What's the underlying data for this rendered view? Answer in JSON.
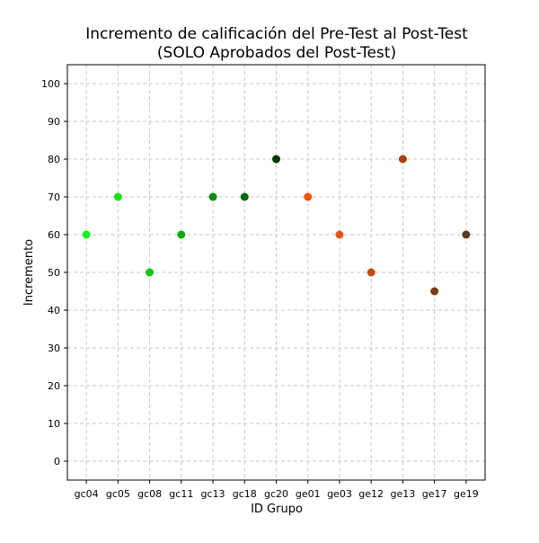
{
  "chart_data": {
    "type": "scatter",
    "title": "Incremento de calificación del Pre-Test al Post-Test",
    "subtitle": "(SOLO Aprobados del Post-Test)",
    "xlabel": "ID Grupo",
    "ylabel": "Incremento",
    "categories": [
      "gc04",
      "gc05",
      "gc08",
      "gc11",
      "gc13",
      "gc18",
      "gc20",
      "ge01",
      "ge03",
      "ge12",
      "ge13",
      "ge17",
      "ge19"
    ],
    "values": [
      60,
      70,
      50,
      60,
      70,
      70,
      80,
      70,
      60,
      50,
      80,
      45,
      60
    ],
    "colors": [
      "#19ef19",
      "#17e017",
      "#12c812",
      "#0ea80e",
      "#0a8c0a",
      "#066a06",
      "#033a03",
      "#f75407",
      "#e35412",
      "#bf4f0b",
      "#a5430b",
      "#7d3a0c",
      "#5e3a14"
    ],
    "ylim": [
      -5,
      105
    ],
    "yticks": [
      0,
      10,
      20,
      30,
      40,
      50,
      60,
      70,
      80,
      90,
      100
    ],
    "grid": true
  }
}
